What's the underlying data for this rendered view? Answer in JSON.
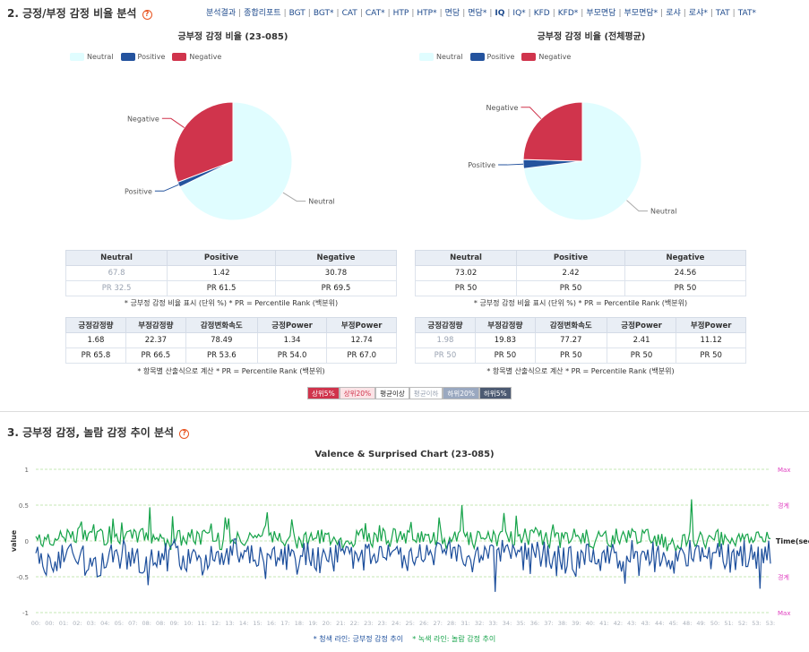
{
  "section2": {
    "title": "2. 긍정/부정 감정 비율 분석"
  },
  "topnav": [
    {
      "label": "분석결과",
      "bold": false
    },
    {
      "label": "종합리포트",
      "bold": false
    },
    {
      "label": "BGT",
      "bold": false
    },
    {
      "label": "BGT*",
      "bold": false
    },
    {
      "label": "CAT",
      "bold": false
    },
    {
      "label": "CAT*",
      "bold": false
    },
    {
      "label": "HTP",
      "bold": false
    },
    {
      "label": "HTP*",
      "bold": false
    },
    {
      "label": "면담",
      "bold": false
    },
    {
      "label": "면담*",
      "bold": false
    },
    {
      "label": "IQ",
      "bold": true
    },
    {
      "label": "IQ*",
      "bold": false
    },
    {
      "label": "KFD",
      "bold": false
    },
    {
      "label": "KFD*",
      "bold": false
    },
    {
      "label": "부모면담",
      "bold": false
    },
    {
      "label": "부모면담*",
      "bold": false
    },
    {
      "label": "로샤",
      "bold": false
    },
    {
      "label": "로샤*",
      "bold": false
    },
    {
      "label": "TAT",
      "bold": false
    },
    {
      "label": "TAT*",
      "bold": false
    }
  ],
  "legend": {
    "neutral": "Neutral",
    "positive": "Positive",
    "negative": "Negative"
  },
  "colors": {
    "neutral": "#e0fdff",
    "positive": "#24539e",
    "negative": "#d0344c",
    "green_line": "#16a34a",
    "blue_line": "#1d4f9c",
    "max_line": "#e040c0",
    "grid_green": "#8bcf6a"
  },
  "pie_left": {
    "title": "긍부정 감정 비율 (23-085)",
    "labels": {
      "neutral": "Neutral",
      "positive": "Positive",
      "negative": "Negative"
    },
    "values": {
      "neutral": 67.8,
      "positive": 1.42,
      "negative": 30.78
    }
  },
  "pie_right": {
    "title": "긍부정 감정 비율 (전체평균)",
    "labels": {
      "neutral": "Neutral",
      "positive": "Positive",
      "negative": "Negative"
    },
    "values": {
      "neutral": 73.02,
      "positive": 2.42,
      "negative": 24.56
    }
  },
  "ratio_table_left": {
    "headers": [
      "Neutral",
      "Positive",
      "Negative"
    ],
    "row1": [
      "67.8",
      "1.42",
      "30.78"
    ],
    "row2": [
      "PR 32.5",
      "PR 61.5",
      "PR 69.5"
    ],
    "note": "* 긍부정 감정 비율 표시 (단위 %)    * PR = Percentile Rank (백분위)"
  },
  "ratio_table_right": {
    "headers": [
      "Neutral",
      "Positive",
      "Negative"
    ],
    "row1": [
      "73.02",
      "2.42",
      "24.56"
    ],
    "row2": [
      "PR 50",
      "PR 50",
      "PR 50"
    ],
    "note": "* 긍부정 감정 비율 표시 (단위 %)    * PR = Percentile Rank (백분위)"
  },
  "metric_table_left": {
    "headers": [
      "긍정감정량",
      "부정감정량",
      "감정변화속도",
      "긍정Power",
      "부정Power"
    ],
    "row1": [
      "1.68",
      "22.37",
      "78.49",
      "1.34",
      "12.74"
    ],
    "row2": [
      "PR 65.8",
      "PR 66.5",
      "PR 53.6",
      "PR 54.0",
      "PR 67.0"
    ],
    "note": "* 항목별 산출식으로 계산    * PR = Percentile Rank (백분위)"
  },
  "metric_table_right": {
    "headers": [
      "긍정감정량",
      "부정감정량",
      "감정변화속도",
      "긍정Power",
      "부정Power"
    ],
    "row1": [
      "1.98",
      "19.83",
      "77.27",
      "2.41",
      "11.12"
    ],
    "row2": [
      "PR 50",
      "PR 50",
      "PR 50",
      "PR 50",
      "PR 50"
    ],
    "note": "* 항목별 산출식으로 계산    * PR = Percentile Rank (백분위)"
  },
  "badges": [
    {
      "label": "상위5%",
      "bg": "#d0344c",
      "fg": "#ffffff"
    },
    {
      "label": "상위20%",
      "bg": "#fbe3e6",
      "fg": "#d0344c"
    },
    {
      "label": "평균이상",
      "bg": "#ffffff",
      "fg": "#222222"
    },
    {
      "label": "평균이하",
      "bg": "#ffffff",
      "fg": "#9aa3b2"
    },
    {
      "label": "하위20%",
      "bg": "#9aa8c0",
      "fg": "#ffffff"
    },
    {
      "label": "하위5%",
      "bg": "#4c5a72",
      "fg": "#ffffff"
    }
  ],
  "section3": {
    "title": "3. 긍부정 감정, 놀람 감정 추이 분석"
  },
  "chart_data": {
    "type": "line",
    "title": "Valence & Surprised Chart (23-085)",
    "xlabel": "Time(sec)",
    "ylabel": "value",
    "ylim": [
      -1,
      1
    ],
    "y_ticks": [
      "1",
      "0.5",
      "0",
      "-0.5",
      "-1"
    ],
    "right_labels": [
      {
        "y": 1,
        "label": "Max"
      },
      {
        "y": 0.5,
        "label": "경계"
      },
      {
        "y": -0.5,
        "label": "경계"
      },
      {
        "y": -1,
        "label": "Max"
      }
    ],
    "x_ticks": [
      "00:",
      "00:",
      "01:",
      "02:",
      "03:",
      "04:",
      "05:",
      "07:",
      "08:",
      "08:",
      "09:",
      "10:",
      "11:",
      "12:",
      "13:",
      "14:",
      "15:",
      "16:",
      "17:",
      "18:",
      "19:",
      "20:",
      "21:",
      "22:",
      "23:",
      "23:",
      "24:",
      "25:",
      "26:",
      "27:",
      "28:",
      "31:",
      "32:",
      "33:",
      "34:",
      "35:",
      "36:",
      "37:",
      "38:",
      "39:",
      "40:",
      "41:",
      "42:",
      "43:",
      "43:",
      "44:",
      "45:",
      "48:",
      "49:",
      "50:",
      "51:",
      "52:",
      "53:",
      "53:"
    ],
    "series": [
      {
        "name": "녹색 라인: 놀람 감정 추이",
        "color": "#16a34a",
        "base": 0.05,
        "amp": 0.12,
        "spike": 0.45,
        "seed": 7
      },
      {
        "name": "청색 라인: 긍부정 감정 추이",
        "color": "#1d4f9c",
        "base": -0.22,
        "amp": 0.2,
        "spike": 0.5,
        "seed": 13
      }
    ],
    "grid": true
  },
  "caption": {
    "blue": "* 청색 라인: 긍부정 감정 추이",
    "green": "* 녹색 라인: 놀람 감정 추이"
  }
}
